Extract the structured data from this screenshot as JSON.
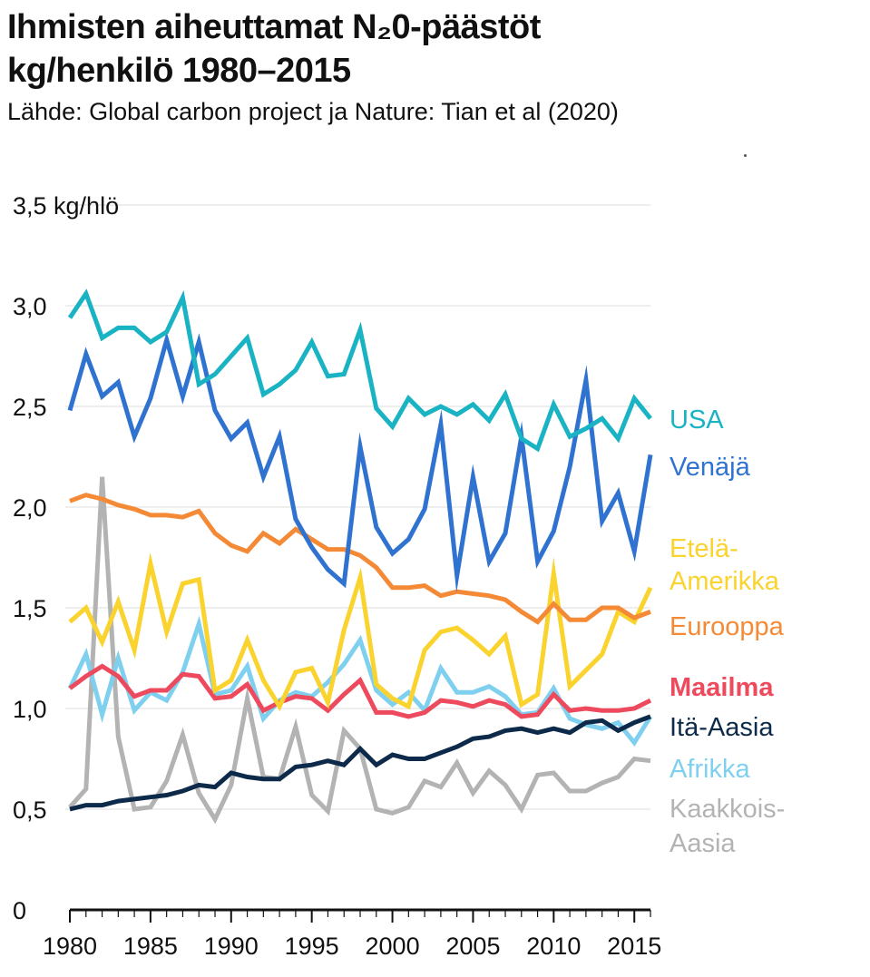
{
  "title_line1": "Ihmisten aiheuttamat N₂0-päästöt",
  "title_line2": "kg/henkilö 1980–2015",
  "source": "Lähde: Global carbon project ja Nature: Tian et al (2020)",
  "chart_data": {
    "type": "line",
    "title": "Ihmisten aiheuttamat N₂0-päästöt kg/henkilö 1980–2015",
    "xlabel": "",
    "ylabel": "kg/hlö",
    "xlim": [
      1980,
      2016
    ],
    "ylim": [
      0,
      3.5
    ],
    "grid": true,
    "y_ticks": [
      {
        "value": 0,
        "label": "0"
      },
      {
        "value": 0.5,
        "label": "0,5"
      },
      {
        "value": 1.0,
        "label": "1,0"
      },
      {
        "value": 1.5,
        "label": "1,5"
      },
      {
        "value": 2.0,
        "label": "2,0"
      },
      {
        "value": 2.5,
        "label": "2,5"
      },
      {
        "value": 3.0,
        "label": "3,0"
      },
      {
        "value": 3.5,
        "label": "3,5 kg/hlö"
      }
    ],
    "x_ticks": [
      {
        "value": 1980,
        "label": "1980"
      },
      {
        "value": 1985,
        "label": "1985"
      },
      {
        "value": 1990,
        "label": "1990"
      },
      {
        "value": 1995,
        "label": "1995"
      },
      {
        "value": 2000,
        "label": "2000"
      },
      {
        "value": 2005,
        "label": "2005"
      },
      {
        "value": 2010,
        "label": "2010"
      },
      {
        "value": 2015,
        "label": "2015"
      }
    ],
    "x": [
      1980,
      1981,
      1982,
      1983,
      1984,
      1985,
      1986,
      1987,
      1988,
      1989,
      1990,
      1991,
      1992,
      1993,
      1994,
      1995,
      1996,
      1997,
      1998,
      1999,
      2000,
      2001,
      2002,
      2003,
      2004,
      2005,
      2006,
      2007,
      2008,
      2009,
      2010,
      2011,
      2012,
      2013,
      2014,
      2015,
      2016
    ],
    "series": [
      {
        "name": "Kaakkois-Aasia",
        "label_lines": [
          "Kaakkois-",
          "Aasia"
        ],
        "color": "#b3b3b3",
        "values": [
          0.51,
          0.6,
          2.15,
          0.86,
          0.5,
          0.51,
          0.64,
          0.87,
          0.58,
          0.45,
          0.62,
          1.05,
          0.66,
          0.65,
          0.91,
          0.57,
          0.49,
          0.89,
          0.8,
          0.5,
          0.48,
          0.51,
          0.64,
          0.61,
          0.73,
          0.58,
          0.69,
          0.62,
          0.5,
          0.67,
          0.68,
          0.59,
          0.59,
          0.63,
          0.66,
          0.75,
          0.74
        ]
      },
      {
        "name": "Afrikka",
        "label_lines": [
          "Afrikka"
        ],
        "color": "#7fd0ef",
        "values": [
          1.1,
          1.27,
          0.97,
          1.25,
          0.99,
          1.08,
          1.04,
          1.18,
          1.42,
          1.07,
          1.09,
          1.21,
          0.95,
          1.04,
          1.08,
          1.06,
          1.13,
          1.22,
          1.34,
          1.09,
          1.02,
          1.08,
          0.99,
          1.2,
          1.08,
          1.08,
          1.11,
          1.06,
          0.97,
          0.98,
          1.1,
          0.95,
          0.92,
          0.9,
          0.93,
          0.83,
          0.96
        ]
      },
      {
        "name": "Itä-Aasia",
        "label_lines": [
          "Itä-Aasia"
        ],
        "color": "#0d2a4a",
        "values": [
          0.5,
          0.52,
          0.52,
          0.54,
          0.55,
          0.56,
          0.57,
          0.59,
          0.62,
          0.61,
          0.68,
          0.66,
          0.65,
          0.65,
          0.71,
          0.72,
          0.74,
          0.72,
          0.8,
          0.72,
          0.77,
          0.75,
          0.75,
          0.78,
          0.81,
          0.85,
          0.86,
          0.89,
          0.9,
          0.88,
          0.9,
          0.88,
          0.93,
          0.94,
          0.89,
          0.93,
          0.96
        ]
      },
      {
        "name": "Maailma",
        "label_lines": [
          "Maailma"
        ],
        "color": "#ee4a5e",
        "values": [
          1.1,
          1.16,
          1.21,
          1.16,
          1.06,
          1.09,
          1.09,
          1.17,
          1.16,
          1.05,
          1.06,
          1.12,
          0.99,
          1.03,
          1.06,
          1.05,
          0.99,
          1.07,
          1.14,
          0.98,
          0.98,
          0.96,
          0.98,
          1.04,
          1.03,
          1.01,
          1.04,
          1.02,
          0.96,
          0.97,
          1.07,
          0.99,
          1.0,
          0.99,
          0.99,
          1.0,
          1.04
        ]
      },
      {
        "name": "Etelä-Amerikka",
        "label_lines": [
          "Etelä-",
          "Amerikka"
        ],
        "color": "#fad32e",
        "values": [
          1.43,
          1.5,
          1.33,
          1.53,
          1.29,
          1.72,
          1.38,
          1.62,
          1.64,
          1.09,
          1.14,
          1.34,
          1.14,
          1.01,
          1.18,
          1.2,
          1.03,
          1.39,
          1.65,
          1.12,
          1.05,
          1.01,
          1.29,
          1.38,
          1.4,
          1.34,
          1.27,
          1.36,
          1.02,
          1.07,
          1.67,
          1.11,
          1.19,
          1.27,
          1.48,
          1.43,
          1.6
        ]
      },
      {
        "name": "Eurooppa",
        "label_lines": [
          "Eurooppa"
        ],
        "color": "#f58a36",
        "values": [
          2.03,
          2.06,
          2.04,
          2.01,
          1.99,
          1.96,
          1.96,
          1.95,
          1.98,
          1.87,
          1.81,
          1.78,
          1.87,
          1.82,
          1.89,
          1.84,
          1.79,
          1.79,
          1.76,
          1.7,
          1.6,
          1.6,
          1.61,
          1.56,
          1.58,
          1.57,
          1.56,
          1.54,
          1.48,
          1.43,
          1.52,
          1.44,
          1.44,
          1.5,
          1.5,
          1.45,
          1.48
        ]
      },
      {
        "name": "Venäjä",
        "label_lines": [
          "Venäjä"
        ],
        "color": "#2f72cf",
        "values": [
          2.48,
          2.76,
          2.55,
          2.62,
          2.35,
          2.54,
          2.83,
          2.55,
          2.82,
          2.48,
          2.34,
          2.42,
          2.15,
          2.35,
          1.94,
          1.8,
          1.69,
          1.62,
          2.3,
          1.9,
          1.77,
          1.84,
          1.99,
          2.41,
          1.66,
          2.15,
          1.73,
          1.87,
          2.35,
          1.73,
          1.88,
          2.2,
          2.63,
          1.93,
          2.07,
          1.78,
          2.26
        ]
      },
      {
        "name": "USA",
        "label_lines": [
          "USA"
        ],
        "color": "#19b3c4",
        "values": [
          2.94,
          3.06,
          2.84,
          2.89,
          2.89,
          2.82,
          2.87,
          3.04,
          2.61,
          2.66,
          2.75,
          2.84,
          2.56,
          2.61,
          2.68,
          2.82,
          2.65,
          2.66,
          2.88,
          2.49,
          2.4,
          2.54,
          2.46,
          2.5,
          2.46,
          2.51,
          2.43,
          2.56,
          2.34,
          2.29,
          2.51,
          2.35,
          2.39,
          2.44,
          2.34,
          2.54,
          2.44
        ]
      }
    ]
  }
}
